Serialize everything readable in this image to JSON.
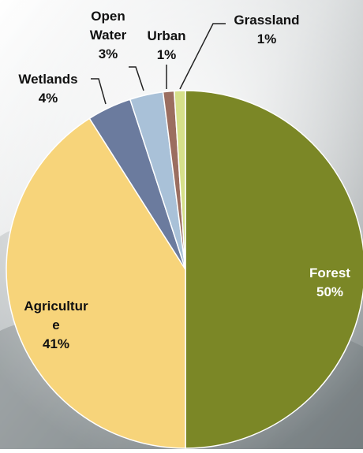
{
  "chart_data": {
    "type": "pie",
    "title": "",
    "slices": [
      {
        "label_lines": [
          "Forest"
        ],
        "value_text": "50%",
        "value": 50,
        "color": "#7b8726",
        "label_color": "#ffffff"
      },
      {
        "label_lines": [
          "Agricultur",
          "e"
        ],
        "value_text": "41%",
        "value": 41,
        "color": "#f7d47a",
        "label_color": "#111111"
      },
      {
        "label_lines": [
          "Wetlands"
        ],
        "value_text": "4%",
        "value": 4,
        "color": "#6b7b9e",
        "label_color": "#111111"
      },
      {
        "label_lines": [
          "Open",
          "Water"
        ],
        "value_text": "3%",
        "value": 3,
        "color": "#a9c1d8",
        "label_color": "#111111"
      },
      {
        "label_lines": [
          "Urban"
        ],
        "value_text": "1%",
        "value": 1,
        "color": "#9b6e60",
        "label_color": "#111111"
      },
      {
        "label_lines": [
          "Grassland"
        ],
        "value_text": "1%",
        "value": 1,
        "color": "#d6e08a",
        "label_color": "#111111"
      }
    ],
    "start": "12 o'clock",
    "direction": "clockwise",
    "legend": "none"
  }
}
